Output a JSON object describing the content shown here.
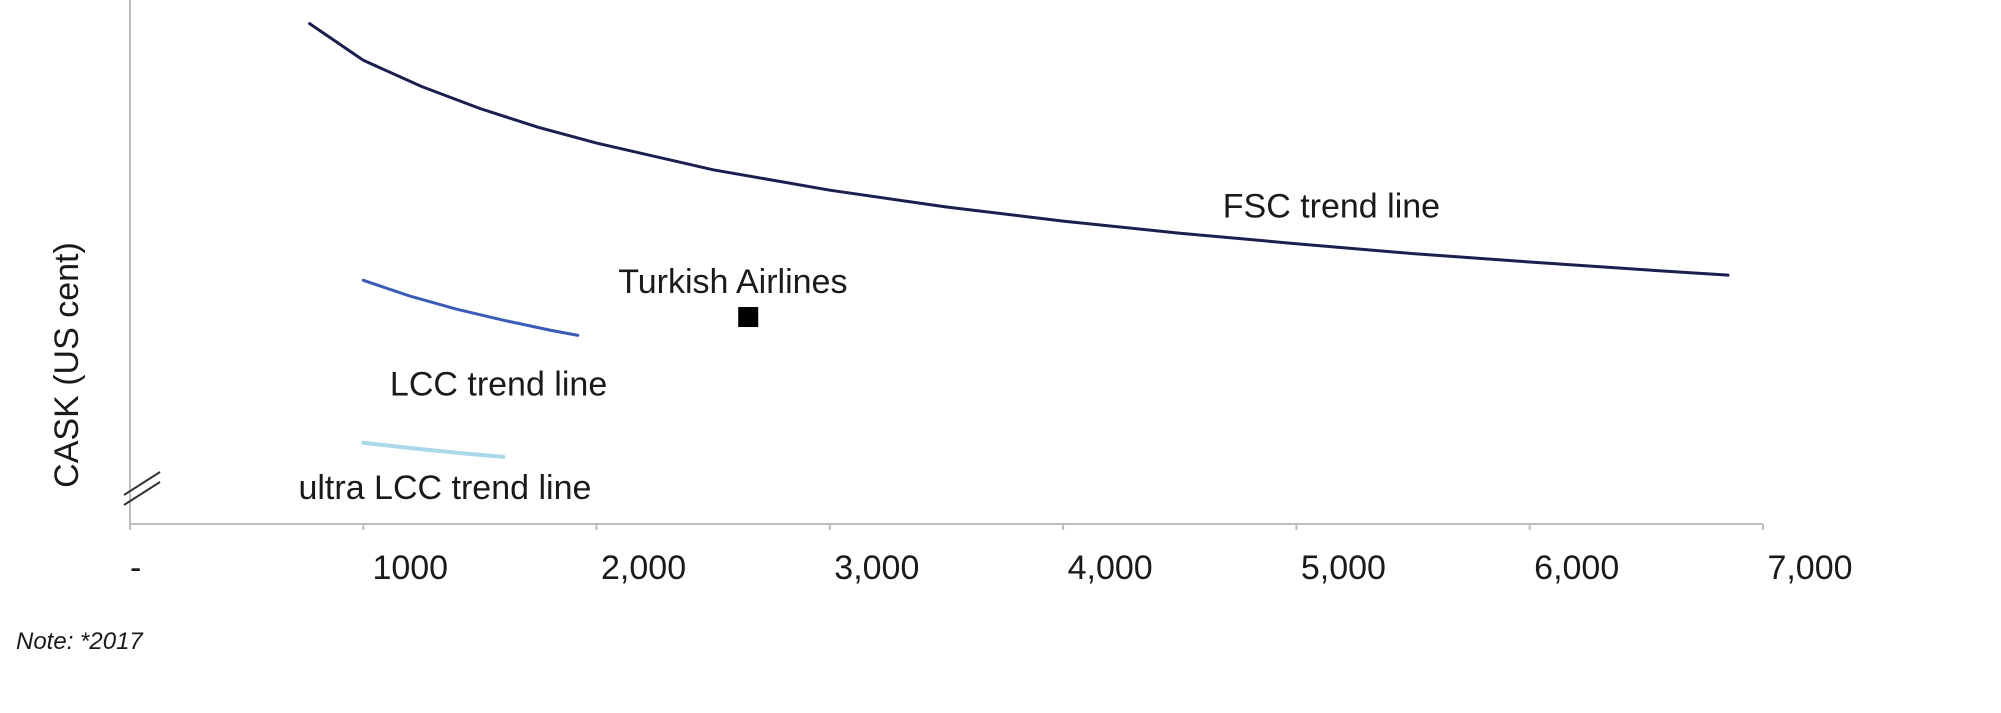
{
  "chart_data": {
    "type": "line",
    "title": "",
    "xlabel": "",
    "ylabel": "CASK (US cent)",
    "xlim": [
      0,
      7000
    ],
    "ylim": [
      0,
      1
    ],
    "grid": false,
    "x_ticks": [
      {
        "value": 0,
        "label": "-"
      },
      {
        "value": 1000,
        "label": "1000"
      },
      {
        "value": 2000,
        "label": "2,000"
      },
      {
        "value": 3000,
        "label": "3,000"
      },
      {
        "value": 4000,
        "label": "4,000"
      },
      {
        "value": 5000,
        "label": "5,000"
      },
      {
        "value": 6000,
        "label": "6,000"
      },
      {
        "value": 7000,
        "label": "7,000"
      }
    ],
    "y_axis_break": true,
    "series": [
      {
        "name": "FSC trend line",
        "color": "#1b1f4f",
        "x": [
          770,
          1000,
          1250,
          1500,
          1750,
          2000,
          2500,
          3000,
          3500,
          4000,
          4500,
          5000,
          5500,
          6000,
          6500,
          6850
        ],
        "y": [
          0.955,
          0.885,
          0.835,
          0.793,
          0.757,
          0.727,
          0.676,
          0.637,
          0.605,
          0.578,
          0.555,
          0.535,
          0.516,
          0.5,
          0.485,
          0.475
        ]
      },
      {
        "name": "LCC trend line",
        "color": "#3a5bb8",
        "x": [
          1000,
          1200,
          1400,
          1600,
          1800,
          1920
        ],
        "y": [
          0.465,
          0.435,
          0.41,
          0.389,
          0.37,
          0.36
        ]
      },
      {
        "name": "ultra LCC trend line",
        "color": "#a8d8ea",
        "x": [
          1000,
          1200,
          1400,
          1600
        ],
        "y": [
          0.155,
          0.145,
          0.136,
          0.128
        ]
      }
    ],
    "points": [
      {
        "name": "Turkish Airlines",
        "x": 2650,
        "y": 0.395,
        "color": "#000000"
      }
    ],
    "annotations": [
      {
        "text": "FSC trend line",
        "x": 5150,
        "y": 0.585,
        "color": "#1f3a6e"
      },
      {
        "text": "LCC trend line",
        "x": 1580,
        "y": 0.245,
        "color": "#1a1a1a"
      },
      {
        "text": "ultra LCC trend line",
        "x": 1350,
        "y": 0.048,
        "color": "#1a1a1a"
      }
    ],
    "note": "Note: *2017"
  }
}
